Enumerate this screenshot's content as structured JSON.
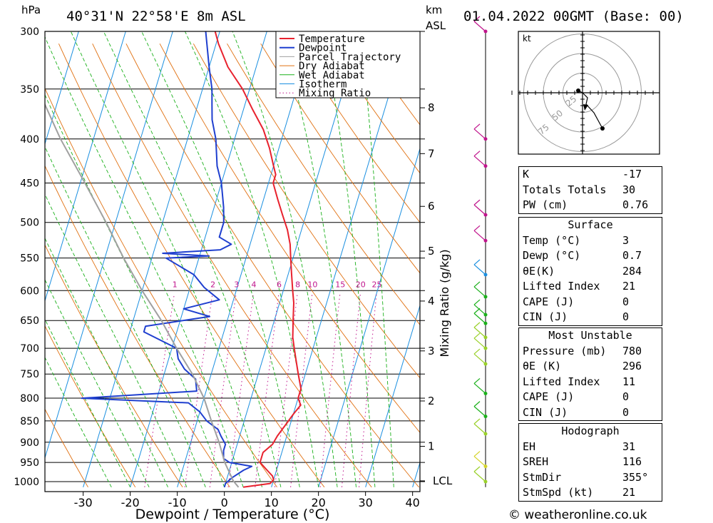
{
  "header": {
    "location": "40°31'N  22°58'E  8m  ASL",
    "datetime": "01.04.2022  00GMT  (Base: 00)",
    "pressure_unit": "hPa",
    "height_unit": "km",
    "height_unit2": "ASL"
  },
  "chart_data": {
    "type": "line",
    "subtype": "skew-t log-p diagram",
    "xlabel": "Dewpoint / Temperature (°C)",
    "ylabel_right": "Mixing Ratio (g/kg)",
    "x_ticks": [
      -30,
      -20,
      -10,
      0,
      10,
      20,
      30,
      40
    ],
    "pressure_levels": [
      300,
      350,
      400,
      450,
      500,
      550,
      600,
      650,
      700,
      750,
      800,
      850,
      900,
      950,
      1000
    ],
    "height_km_ticks": [
      {
        "label": "8",
        "p": 368
      },
      {
        "label": "7",
        "p": 416
      },
      {
        "label": "6",
        "p": 479
      },
      {
        "label": "5",
        "p": 540
      },
      {
        "label": "4",
        "p": 617
      },
      {
        "label": "3",
        "p": 705
      },
      {
        "label": "2",
        "p": 806
      },
      {
        "label": "1",
        "p": 910
      },
      {
        "label": "LCL",
        "p": 998
      }
    ],
    "mixing_ratio_labels": [
      "1",
      "2",
      "3",
      "4",
      "6",
      "8",
      "10",
      "15",
      "20",
      "25"
    ],
    "mixing_ratio_values": [
      1,
      2,
      3,
      4,
      6,
      8,
      10,
      15,
      20,
      25
    ],
    "legend": [
      "Temperature",
      "Dewpoint",
      "Parcel Trajectory",
      "Dry Adiabat",
      "Wet Adiabat",
      "Isotherm",
      "Mixing Ratio"
    ],
    "colors": {
      "temperature": "#e8222e",
      "dewpoint": "#1f3fcf",
      "parcel": "#a0a0a0",
      "dry_adiabat": "#e07010",
      "wet_adiabat": "#1ab01a",
      "isotherm": "#1a8fe0",
      "mixing_ratio": "#c0148c"
    },
    "series": [
      {
        "name": "Temperature",
        "points": [
          [
            1015,
            4
          ],
          [
            1005,
            9.5
          ],
          [
            995,
            10
          ],
          [
            985,
            9.5
          ],
          [
            970,
            8
          ],
          [
            950,
            6
          ],
          [
            925,
            6
          ],
          [
            905,
            7.5
          ],
          [
            885,
            8
          ],
          [
            860,
            9
          ],
          [
            835,
            10
          ],
          [
            815,
            11
          ],
          [
            800,
            10
          ],
          [
            780,
            10
          ],
          [
            750,
            8.5
          ],
          [
            720,
            7
          ],
          [
            700,
            6
          ],
          [
            680,
            5
          ],
          [
            650,
            4
          ],
          [
            620,
            3
          ],
          [
            600,
            2
          ],
          [
            570,
            0.5
          ],
          [
            550,
            -0.5
          ],
          [
            530,
            -1.5
          ],
          [
            510,
            -3
          ],
          [
            490,
            -5
          ],
          [
            470,
            -7
          ],
          [
            450,
            -9
          ],
          [
            440,
            -9
          ],
          [
            430,
            -10
          ],
          [
            410,
            -12
          ],
          [
            390,
            -14.5
          ],
          [
            370,
            -18
          ],
          [
            350,
            -21.5
          ],
          [
            330,
            -26
          ],
          [
            310,
            -29.5
          ],
          [
            300,
            -31
          ]
        ]
      },
      {
        "name": "Dewpoint",
        "points": [
          [
            1015,
            0
          ],
          [
            1005,
            0
          ],
          [
            990,
            1
          ],
          [
            970,
            3
          ],
          [
            960,
            4.5
          ],
          [
            950,
            -0.5
          ],
          [
            940,
            -2
          ],
          [
            920,
            -2.5
          ],
          [
            905,
            -2.5
          ],
          [
            885,
            -4
          ],
          [
            870,
            -5
          ],
          [
            850,
            -8
          ],
          [
            830,
            -10
          ],
          [
            810,
            -13
          ],
          [
            800,
            -36
          ],
          [
            785,
            -12
          ],
          [
            760,
            -13
          ],
          [
            740,
            -16
          ],
          [
            720,
            -18
          ],
          [
            700,
            -19
          ],
          [
            670,
            -27
          ],
          [
            660,
            -27
          ],
          [
            643,
            -14
          ],
          [
            630,
            -20
          ],
          [
            615,
            -13
          ],
          [
            595,
            -17
          ],
          [
            575,
            -20
          ],
          [
            550,
            -27
          ],
          [
            547,
            -18
          ],
          [
            543,
            -28
          ],
          [
            538,
            -16
          ],
          [
            530,
            -14
          ],
          [
            520,
            -17
          ],
          [
            500,
            -17
          ],
          [
            480,
            -18
          ],
          [
            450,
            -20
          ],
          [
            430,
            -22
          ],
          [
            400,
            -24
          ],
          [
            380,
            -26
          ],
          [
            365,
            -27
          ],
          [
            350,
            -28
          ],
          [
            330,
            -30
          ],
          [
            300,
            -33
          ]
        ]
      },
      {
        "name": "Parcel Trajectory",
        "points": [
          [
            1015,
            3
          ],
          [
            998,
            1.5
          ],
          [
            950,
            -1.5
          ],
          [
            900,
            -4
          ],
          [
            850,
            -7
          ],
          [
            800,
            -10
          ],
          [
            750,
            -14
          ],
          [
            700,
            -19
          ],
          [
            650,
            -24
          ],
          [
            600,
            -30
          ],
          [
            550,
            -36
          ],
          [
            500,
            -42
          ],
          [
            450,
            -49
          ],
          [
            400,
            -57
          ],
          [
            350,
            -65
          ],
          [
            300,
            -73
          ]
        ]
      }
    ],
    "wind_profile": "wind barbs plotted along pressure axis, 300–1015 hPa"
  },
  "hodograph": {
    "unit_label": "kt",
    "ring_labels": [
      "25",
      "50",
      "75"
    ]
  },
  "indices": {
    "rows": [
      {
        "label": "K",
        "value": "-17"
      },
      {
        "label": "Totals Totals",
        "value": "30"
      },
      {
        "label": "PW (cm)",
        "value": "0.76"
      }
    ]
  },
  "surface": {
    "title": "Surface",
    "rows": [
      {
        "label": "Temp (°C)",
        "value": "3"
      },
      {
        "label": "Dewp (°C)",
        "value": "0.7"
      },
      {
        "label": "θE(K)",
        "value": "284"
      },
      {
        "label": "Lifted Index",
        "value": "21"
      },
      {
        "label": "CAPE (J)",
        "value": "0"
      },
      {
        "label": "CIN (J)",
        "value": "0"
      }
    ]
  },
  "most_unstable": {
    "title": "Most Unstable",
    "rows": [
      {
        "label": "Pressure (mb)",
        "value": "780"
      },
      {
        "label": "θE (K)",
        "value": "296"
      },
      {
        "label": "Lifted Index",
        "value": "11"
      },
      {
        "label": "CAPE (J)",
        "value": "0"
      },
      {
        "label": "CIN (J)",
        "value": "0"
      }
    ]
  },
  "hodograph_stats": {
    "title": "Hodograph",
    "rows": [
      {
        "label": "EH",
        "value": "31"
      },
      {
        "label": "SREH",
        "value": "116"
      },
      {
        "label": "StmDir",
        "value": "355°"
      },
      {
        "label": "StmSpd (kt)",
        "value": "21"
      }
    ]
  },
  "footer": "© weatheronline.co.uk"
}
